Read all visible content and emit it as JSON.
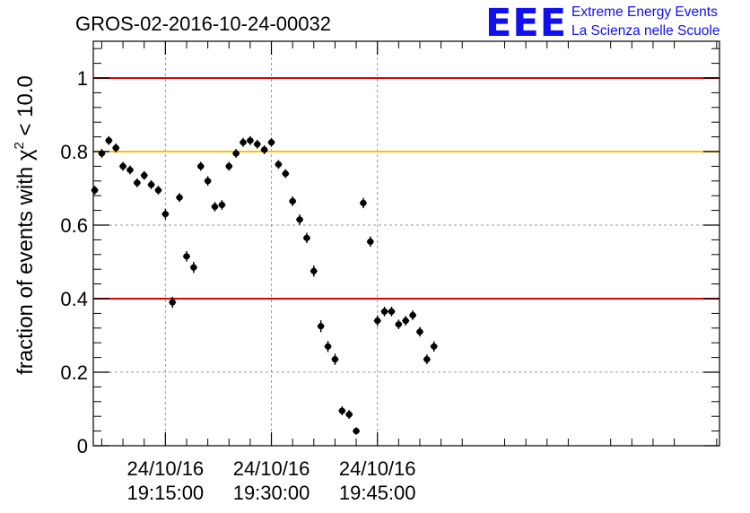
{
  "chart_data": {
    "type": "scatter",
    "title": "GROS-02-2016-10-24-00032",
    "ylabel": {
      "prefix": "fraction of events with ",
      "symbol": "χ",
      "superscript": "2",
      "suffix": " < 10.0"
    },
    "xlabel": "",
    "ylim": [
      0,
      1.1
    ],
    "y_ticks": [
      "0",
      "0.2",
      "0.4",
      "0.6",
      "0.8",
      "1"
    ],
    "y_tick_values": [
      0,
      0.2,
      0.4,
      0.6,
      0.8,
      1.0
    ],
    "x_unit": "minutes after 24/10/16 19:00:00",
    "xlim": [
      4.8,
      93.4
    ],
    "x_ticks": [
      {
        "value": 15,
        "line1": "24/10/16",
        "line2": "19:15:00"
      },
      {
        "value": 30,
        "line1": "24/10/16",
        "line2": "19:30:00"
      },
      {
        "value": 45,
        "line1": "24/10/16",
        "line2": "19:45:00"
      }
    ],
    "grid": true,
    "reference_lines": [
      {
        "y": 1.0,
        "color": "#e00000"
      },
      {
        "y": 0.8,
        "color": "#ffc000"
      },
      {
        "y": 0.4,
        "color": "#e00000"
      }
    ],
    "marker_color": "#000000",
    "x_error": 0.5,
    "series": [
      {
        "x": [
          5,
          6,
          7,
          8,
          9,
          10,
          11,
          12,
          13,
          14,
          15,
          16,
          17,
          18,
          19,
          20,
          21,
          22,
          23,
          24,
          25,
          26,
          27,
          28,
          29,
          30,
          31,
          32,
          33,
          34,
          35,
          36,
          37,
          38,
          39,
          40,
          41,
          42,
          43,
          44,
          45,
          46,
          47,
          48,
          49,
          50,
          51,
          52,
          53
        ],
        "y": [
          0.695,
          0.795,
          0.83,
          0.81,
          0.76,
          0.75,
          0.715,
          0.735,
          0.71,
          0.695,
          0.63,
          0.39,
          0.675,
          0.515,
          0.485,
          0.76,
          0.72,
          0.65,
          0.655,
          0.76,
          0.795,
          0.825,
          0.83,
          0.82,
          0.805,
          0.825,
          0.765,
          0.74,
          0.665,
          0.615,
          0.565,
          0.475,
          0.325,
          0.27,
          0.235,
          0.095,
          0.085,
          0.04,
          0.66,
          0.555,
          0.34,
          0.365,
          0.365,
          0.33,
          0.34,
          0.355,
          0.31,
          0.235,
          0.27
        ],
        "y_error": [
          0.012,
          0.012,
          0.012,
          0.012,
          0.012,
          0.012,
          0.012,
          0.012,
          0.012,
          0.012,
          0.014,
          0.015,
          0.012,
          0.014,
          0.015,
          0.012,
          0.013,
          0.013,
          0.013,
          0.012,
          0.012,
          0.012,
          0.012,
          0.012,
          0.012,
          0.012,
          0.012,
          0.012,
          0.013,
          0.014,
          0.014,
          0.015,
          0.016,
          0.015,
          0.015,
          0.012,
          0.012,
          0.01,
          0.014,
          0.014,
          0.014,
          0.013,
          0.013,
          0.013,
          0.013,
          0.013,
          0.013,
          0.013,
          0.014
        ]
      }
    ]
  },
  "logo": {
    "mark": "EEE",
    "line1": "Extreme Energy Events",
    "line2": "La Scienza nelle Scuole",
    "color": "#1010ee"
  }
}
